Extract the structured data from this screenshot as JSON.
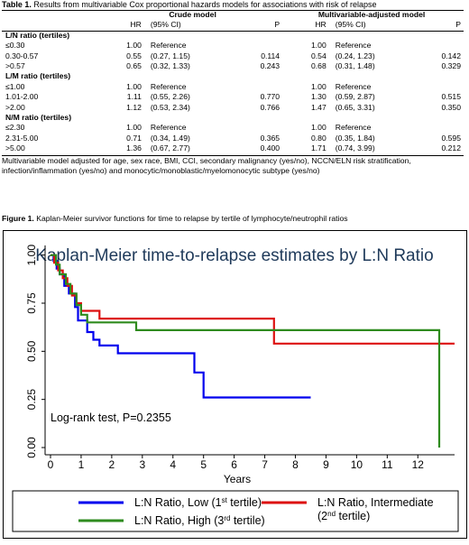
{
  "table": {
    "title_bold": "Table 1.",
    "title_rest": " Results from multivariable Cox proportional hazards models for associations with risk of relapse",
    "group_crude": "Crude model",
    "group_adjusted": "Multivariable-adjusted model",
    "col_hr": "HR",
    "col_ci": "(95% CI)",
    "col_p": "P",
    "sections": [
      {
        "label": "L/N ratio (tertiles)",
        "rows": [
          {
            "label": "≤0.30",
            "hr1": "1.00",
            "ci1": "Reference",
            "p1": "",
            "hr2": "1.00",
            "ci2": "Reference",
            "p2": ""
          },
          {
            "label": "0.30-0.57",
            "hr1": "0.55",
            "ci1": "(0.27, 1.15)",
            "p1": "0.114",
            "hr2": "0.54",
            "ci2": "(0.24, 1.23)",
            "p2": "0.142"
          },
          {
            "label": ">0.57",
            "hr1": "0.65",
            "ci1": "(0.32, 1.33)",
            "p1": "0.243",
            "hr2": "0.68",
            "ci2": "(0.31, 1.48)",
            "p2": "0.329"
          }
        ]
      },
      {
        "label": "L/M ratio (tertiles)",
        "rows": [
          {
            "label": "≤1.00",
            "hr1": "1.00",
            "ci1": "Reference",
            "p1": "",
            "hr2": "1.00",
            "ci2": "Reference",
            "p2": ""
          },
          {
            "label": "1.01-2.00",
            "hr1": "1.11",
            "ci1": "(0.55, 2.26)",
            "p1": "0.770",
            "hr2": "1.30",
            "ci2": "(0.59, 2.87)",
            "p2": "0.515"
          },
          {
            "label": ">2.00",
            "hr1": "1.12",
            "ci1": "(0.53, 2.34)",
            "p1": "0.766",
            "hr2": "1.47",
            "ci2": "(0.65, 3.31)",
            "p2": "0.350"
          }
        ]
      },
      {
        "label": "N/M ratio (tertiles)",
        "rows": [
          {
            "label": "≤2.30",
            "hr1": "1.00",
            "ci1": "Reference",
            "p1": "",
            "hr2": "1.00",
            "ci2": "Reference",
            "p2": ""
          },
          {
            "label": "2.31-5.00",
            "hr1": "0.71",
            "ci1": "(0.34, 1.49)",
            "p1": "0.365",
            "hr2": "0.80",
            "ci2": "(0.35, 1.84)",
            "p2": "0.595"
          },
          {
            "label": ">5.00",
            "hr1": "1.36",
            "ci1": "(0.67, 2.77)",
            "p1": "0.400",
            "hr2": "1.71",
            "ci2": "(0.74, 3.99)",
            "p2": "0.212"
          }
        ]
      }
    ],
    "footnote": "Multivariable model adjusted for age, sex race, BMI, CCI, secondary malignancy (yes/no), NCCN/ELN risk stratification, infection/inflammation (yes/no) and monocytic/monoblastic/myelomonocytic subtype (yes/no)"
  },
  "figure": {
    "caption_bold": "Figure 1.",
    "caption_rest": " Kaplan-Meier survivor functions for time to relapse by tertile of lymphocyte/neutrophil ratios"
  },
  "chart_data": {
    "type": "line",
    "step": true,
    "title": "Kaplan-Meier time-to-relapse estimates by L:N Ratio",
    "xlabel": "Years",
    "ylabel": "",
    "xlim": [
      0,
      13.2
    ],
    "ylim": [
      0,
      1.05
    ],
    "x_ticks": [
      0,
      1,
      2,
      3,
      4,
      5,
      6,
      7,
      8,
      9,
      10,
      11,
      12
    ],
    "y_ticks": [
      "0.00",
      "0.25",
      "0.50",
      "0.75",
      "1.00"
    ],
    "y_tick_values": [
      0,
      0.25,
      0.5,
      0.75,
      1.0
    ],
    "annotation": "Log-rank test, P=0.2355",
    "series": [
      {
        "name": "L:N Ratio, Low",
        "legend_main": "L:N Ratio, Low (1",
        "legend_sup": "st",
        "legend_tail": " tertile)",
        "color": "#0000ee",
        "points": [
          [
            0,
            1.0
          ],
          [
            0.1,
            1.0
          ],
          [
            0.1,
            0.97
          ],
          [
            0.2,
            0.97
          ],
          [
            0.2,
            0.93
          ],
          [
            0.3,
            0.93
          ],
          [
            0.3,
            0.9
          ],
          [
            0.45,
            0.9
          ],
          [
            0.45,
            0.84
          ],
          [
            0.6,
            0.84
          ],
          [
            0.6,
            0.8
          ],
          [
            0.8,
            0.8
          ],
          [
            0.8,
            0.73
          ],
          [
            0.9,
            0.73
          ],
          [
            0.9,
            0.66
          ],
          [
            1.2,
            0.66
          ],
          [
            1.2,
            0.6
          ],
          [
            1.4,
            0.6
          ],
          [
            1.4,
            0.56
          ],
          [
            1.6,
            0.56
          ],
          [
            1.6,
            0.53
          ],
          [
            2.2,
            0.53
          ],
          [
            2.2,
            0.49
          ],
          [
            4.7,
            0.49
          ],
          [
            4.7,
            0.39
          ],
          [
            5.0,
            0.39
          ],
          [
            5.0,
            0.26
          ],
          [
            8.5,
            0.26
          ]
        ]
      },
      {
        "name": "L:N Ratio, Intermediate",
        "legend_main": "L:N Ratio, Intermediate",
        "legend_line2": "(2",
        "legend_sup": "nd",
        "legend_tail": " tertile)",
        "color": "#dd1111",
        "points": [
          [
            0,
            1.0
          ],
          [
            0.12,
            1.0
          ],
          [
            0.12,
            0.96
          ],
          [
            0.25,
            0.96
          ],
          [
            0.25,
            0.92
          ],
          [
            0.4,
            0.92
          ],
          [
            0.4,
            0.88
          ],
          [
            0.55,
            0.88
          ],
          [
            0.55,
            0.84
          ],
          [
            0.7,
            0.84
          ],
          [
            0.7,
            0.79
          ],
          [
            0.85,
            0.79
          ],
          [
            0.85,
            0.75
          ],
          [
            1.0,
            0.75
          ],
          [
            1.0,
            0.71
          ],
          [
            1.6,
            0.71
          ],
          [
            1.6,
            0.67
          ],
          [
            7.3,
            0.67
          ],
          [
            7.3,
            0.54
          ],
          [
            13.2,
            0.54
          ]
        ]
      },
      {
        "name": "L:N Ratio, High",
        "legend_main": "L:N Ratio, High (3",
        "legend_sup": "rd",
        "legend_tail": " tertile)",
        "color": "#2e8b1e",
        "points": [
          [
            0,
            1.0
          ],
          [
            0.18,
            1.0
          ],
          [
            0.18,
            0.95
          ],
          [
            0.3,
            0.95
          ],
          [
            0.3,
            0.9
          ],
          [
            0.5,
            0.9
          ],
          [
            0.5,
            0.85
          ],
          [
            0.65,
            0.85
          ],
          [
            0.65,
            0.8
          ],
          [
            0.85,
            0.8
          ],
          [
            0.85,
            0.74
          ],
          [
            1.0,
            0.74
          ],
          [
            1.0,
            0.69
          ],
          [
            1.2,
            0.69
          ],
          [
            1.2,
            0.65
          ],
          [
            2.8,
            0.65
          ],
          [
            2.8,
            0.61
          ],
          [
            12.7,
            0.61
          ],
          [
            12.7,
            0.0
          ]
        ]
      }
    ]
  }
}
